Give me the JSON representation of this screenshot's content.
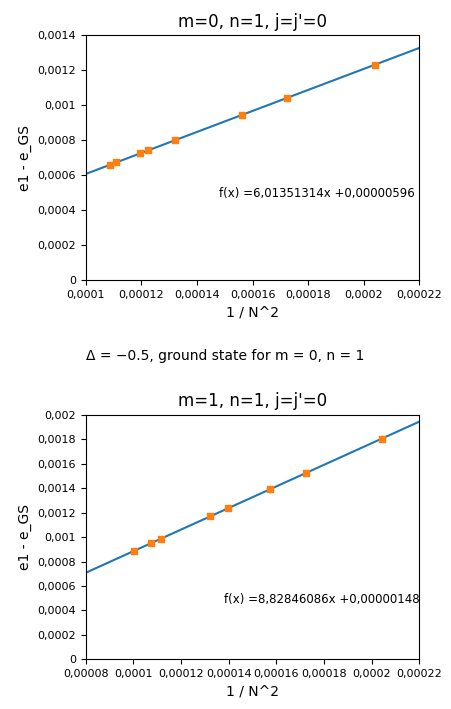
{
  "caption": "Δ = −0.5, ground state for m = 0, n = 1",
  "chart_data": [
    {
      "type": "scatter",
      "title": "m=0, n=1, j=j'=0",
      "x_label": "1 / N^2",
      "y_label": "e1 - e_GS",
      "marker": "square",
      "x": [
        0.0001087,
        0.000111,
        0.0001195,
        0.0001225,
        0.0001322,
        0.0001563,
        0.0001724,
        0.0002041
      ],
      "values": [
        0.000659628878318,
        0.00067345995854,
        0.00072457482023,
        0.00074261535965,
        0.000800946437108,
        0.000945872103782,
        0.001042689665336,
        0.001233318031874
      ],
      "fit_line": {
        "x": [
          0.0001,
          0.00022
        ],
        "values": [
          0.000607311314,
          0.0013289328908
        ]
      },
      "annotations": [
        {
          "text": "f(x) =6,01351314x +0,00000596",
          "x": 0.000148,
          "y": 0.00046
        }
      ],
      "xlim": [
        0.0001,
        0.00022
      ],
      "ylim": [
        0,
        0.0014
      ],
      "xticks": [
        {
          "value": 0.0001,
          "label": "0,0001"
        },
        {
          "value": 0.00012,
          "label": "0,00012"
        },
        {
          "value": 0.00014,
          "label": "0,00014"
        },
        {
          "value": 0.00016,
          "label": "0,00016"
        },
        {
          "value": 0.00018,
          "label": "0,00018"
        },
        {
          "value": 0.0002,
          "label": "0,0002"
        },
        {
          "value": 0.00022,
          "label": "0,00022"
        }
      ],
      "yticks": [
        0,
        {
          "value": 0.0002,
          "label": "0,0002"
        },
        {
          "value": 0.0004,
          "label": "0,0004"
        },
        {
          "value": 0.0006,
          "label": "0,0006"
        },
        {
          "value": 0.0008,
          "label": "0,0008"
        },
        {
          "value": 0.001,
          "label": "0,001"
        },
        {
          "value": 0.0012,
          "label": "0,0012"
        },
        {
          "value": 0.0014,
          "label": "0,0014"
        }
      ]
    },
    {
      "type": "scatter",
      "title": "m=1, n=1, j=j'=0",
      "x_label": "1 / N^2",
      "y_label": "e1 - e_GS",
      "marker": "square",
      "x": [
        0.0001002,
        0.0001072,
        0.0001117,
        0.0001322,
        0.0001399,
        0.0001575,
        0.0001724,
        0.0002041
      ],
      "values": [
        0.000886091778172,
        0.000947891004192,
        0.000987619078062,
        0.001168602525692,
        0.001236581674314,
        0.00139196258545,
        0.001523506652264,
        0.001803368861526
      ],
      "fit_line": {
        "x": [
          8e-05,
          0.00022
        ],
        "values": [
          0.0007077568688,
          0.0019437413892
        ]
      },
      "annotations": [
        {
          "text": "f(x) =8,82846086x +0,00000148",
          "x": 0.000138,
          "y": 0.00044
        }
      ],
      "xlim": [
        8e-05,
        0.00022
      ],
      "ylim": [
        0,
        0.002
      ],
      "xticks": [
        {
          "value": 8e-05,
          "label": "0,00008"
        },
        {
          "value": 0.0001,
          "label": "0,0001"
        },
        {
          "value": 0.00012,
          "label": "0,00012"
        },
        {
          "value": 0.00014,
          "label": "0,00014"
        },
        {
          "value": 0.00016,
          "label": "0,00016"
        },
        {
          "value": 0.00018,
          "label": "0,00018"
        },
        {
          "value": 0.0002,
          "label": "0,0002"
        },
        {
          "value": 0.00022,
          "label": "0,00022"
        }
      ],
      "yticks": [
        0,
        {
          "value": 0.0002,
          "label": "0,0002"
        },
        {
          "value": 0.0004,
          "label": "0,0004"
        },
        {
          "value": 0.0006,
          "label": "0,0006"
        },
        {
          "value": 0.0008,
          "label": "0,0008"
        },
        {
          "value": 0.001,
          "label": "0,001"
        },
        {
          "value": 0.0012,
          "label": "0,0012"
        },
        {
          "value": 0.0014,
          "label": "0,0014"
        },
        {
          "value": 0.0016,
          "label": "0,0016"
        },
        {
          "value": 0.0018,
          "label": "0,0018"
        },
        {
          "value": 0.002,
          "label": "0,002"
        }
      ]
    }
  ]
}
